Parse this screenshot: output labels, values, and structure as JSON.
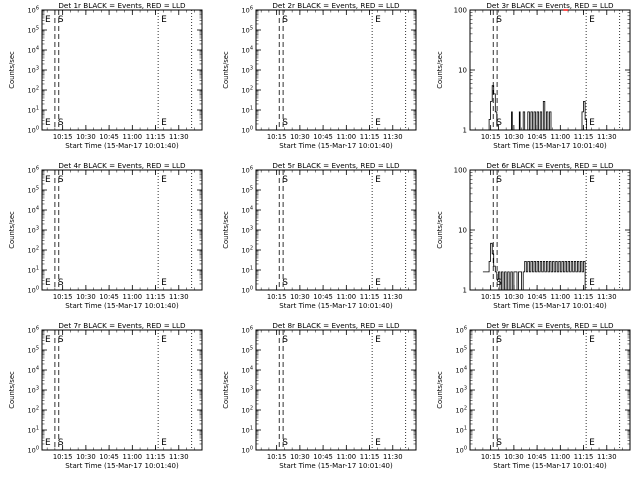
{
  "figure": {
    "background": "#ffffff",
    "ink_color": "#000000",
    "lld_color": "#ff0000"
  },
  "chart_data": [
    {
      "type": "line",
      "title": "Det 1r BLACK = Events, RED = LLD",
      "xlabel": "Start Time (15-Mar-17 10:01:40)",
      "ylabel": "Counts/sec",
      "y_scale": "log",
      "ylim": [
        1,
        1000000
      ],
      "y_ticks": [
        1,
        10,
        100,
        1000,
        10000,
        100000,
        1000000
      ],
      "y_tick_labels": [
        "10^0",
        "10^1",
        "10^2",
        "10^3",
        "10^4",
        "10^5",
        "10^6"
      ],
      "xlim": [
        "10:01:40",
        "11:45:00"
      ],
      "x_ticks": [
        "10:15",
        "10:30",
        "10:45",
        "11:00",
        "11:15",
        "11:30"
      ],
      "markers": [
        {
          "label": "E",
          "time": "10:01:40",
          "style": "dotted"
        },
        {
          "label": "S",
          "time": "10:10:00",
          "style": "dashed"
        },
        {
          "label": "E",
          "time": "11:16:40",
          "style": "dotted"
        },
        {
          "label": "",
          "time": "11:38:20",
          "style": "dotted"
        }
      ],
      "extra_dashed": [
        "10:12:30"
      ],
      "series": []
    },
    {
      "type": "line",
      "title": "Det 2r BLACK = Events, RED = LLD",
      "xlabel": "Start Time (15-Mar-17 10:01:40)",
      "ylabel": "Counts/sec",
      "y_scale": "log",
      "ylim": [
        1,
        1000000
      ],
      "y_ticks": [
        1,
        10,
        100,
        1000,
        10000,
        100000,
        1000000
      ],
      "y_tick_labels": [
        "10^0",
        "10^1",
        "10^2",
        "10^3",
        "10^4",
        "10^5",
        "10^6"
      ],
      "xlim": [
        "10:01:40",
        "11:45:00"
      ],
      "x_ticks": [
        "10:15",
        "10:30",
        "10:45",
        "11:00",
        "11:15",
        "11:30"
      ],
      "markers": [
        {
          "label": "S",
          "time": "10:16:40",
          "style": "dashed"
        },
        {
          "label": "E",
          "time": "11:16:40",
          "style": "dotted"
        },
        {
          "label": "",
          "time": "11:38:20",
          "style": "dotted"
        }
      ],
      "extra_dashed": [
        "10:19:10"
      ],
      "series": []
    },
    {
      "type": "line",
      "title": "Det 3r BLACK = Events, RED = LLD",
      "xlabel": "Start Time (15-Mar-17 10:01:40)",
      "ylabel": "Counts/sec",
      "y_scale": "log",
      "ylim": [
        1,
        100
      ],
      "y_ticks": [
        1,
        10,
        100
      ],
      "y_tick_labels": [
        "1",
        "10",
        "100"
      ],
      "xlim": [
        "10:01:40",
        "11:45:00"
      ],
      "x_ticks": [
        "10:15",
        "10:30",
        "10:45",
        "11:00",
        "11:15",
        "11:30"
      ],
      "markers": [
        {
          "label": "S",
          "time": "10:16:40",
          "style": "dashed"
        },
        {
          "label": "E",
          "time": "11:16:40",
          "style": "dotted"
        },
        {
          "label": "",
          "time": "11:38:20",
          "style": "dotted"
        }
      ],
      "extra_dashed": [
        "10:19:10"
      ],
      "series": [
        {
          "name": "Events",
          "color": "#000000",
          "step": true,
          "points": [
            [
              "10:13:20",
              1
            ],
            [
              "10:14:00",
              1.5
            ],
            [
              "10:15:00",
              3
            ],
            [
              "10:16:00",
              5.5
            ],
            [
              "10:17:00",
              4
            ],
            [
              "10:18:00",
              2
            ],
            [
              "10:19:00",
              1.2
            ],
            [
              "10:20:00",
              1
            ],
            [
              "10:28:00",
              1
            ],
            [
              "10:28:30",
              2
            ],
            [
              "10:29:00",
              1
            ],
            [
              "10:33:00",
              1
            ],
            [
              "10:33:30",
              2
            ],
            [
              "10:34:00",
              1
            ],
            [
              "10:36:00",
              2
            ],
            [
              "10:37:00",
              1
            ],
            [
              "10:39:00",
              2
            ],
            [
              "10:40:00",
              1
            ],
            [
              "10:41:00",
              2
            ],
            [
              "10:42:00",
              1
            ],
            [
              "10:43:00",
              2
            ],
            [
              "10:44:00",
              1
            ],
            [
              "10:45:00",
              2
            ],
            [
              "10:46:00",
              1
            ],
            [
              "10:47:00",
              2
            ],
            [
              "10:48:00",
              1
            ],
            [
              "10:49:00",
              3
            ],
            [
              "10:50:00",
              1
            ],
            [
              "10:51:00",
              2
            ],
            [
              "10:52:00",
              1
            ],
            [
              "10:53:00",
              2
            ],
            [
              "10:54:00",
              1
            ],
            [
              "10:55:00",
              1
            ],
            [
              "11:13:00",
              1
            ],
            [
              "11:14:00",
              2
            ],
            [
              "11:15:00",
              3
            ],
            [
              "11:16:00",
              1.5
            ],
            [
              "11:17:00",
              1
            ]
          ]
        },
        {
          "name": "LLD",
          "color": "#ff0000",
          "step": false,
          "points": [
            [
              "11:02:00",
              100
            ],
            [
              "11:05:00",
              100
            ]
          ]
        }
      ]
    },
    {
      "type": "line",
      "title": "Det 4r BLACK = Events, RED = LLD",
      "xlabel": "Start Time (15-Mar-17 10:01:40)",
      "ylabel": "Counts/sec",
      "y_scale": "log",
      "ylim": [
        1,
        1000000
      ],
      "y_ticks": [
        1,
        10,
        100,
        1000,
        10000,
        100000,
        1000000
      ],
      "y_tick_labels": [
        "10^0",
        "10^1",
        "10^2",
        "10^3",
        "10^4",
        "10^5",
        "10^6"
      ],
      "xlim": [
        "10:01:40",
        "11:45:00"
      ],
      "x_ticks": [
        "10:15",
        "10:30",
        "10:45",
        "11:00",
        "11:15",
        "11:30"
      ],
      "markers": [
        {
          "label": "E",
          "time": "10:01:40",
          "style": "dotted"
        },
        {
          "label": "S",
          "time": "10:10:00",
          "style": "dashed"
        },
        {
          "label": "E",
          "time": "11:16:40",
          "style": "dotted"
        },
        {
          "label": "",
          "time": "11:38:20",
          "style": "dotted"
        }
      ],
      "extra_dashed": [
        "10:12:30"
      ],
      "series": []
    },
    {
      "type": "line",
      "title": "Det 5r BLACK = Events, RED = LLD",
      "xlabel": "Start Time (15-Mar-17 10:01:40)",
      "ylabel": "Counts/sec",
      "y_scale": "log",
      "ylim": [
        1,
        1000000
      ],
      "y_ticks": [
        1,
        10,
        100,
        1000,
        10000,
        100000,
        1000000
      ],
      "y_tick_labels": [
        "10^0",
        "10^1",
        "10^2",
        "10^3",
        "10^4",
        "10^5",
        "10^6"
      ],
      "xlim": [
        "10:01:40",
        "11:45:00"
      ],
      "x_ticks": [
        "10:15",
        "10:30",
        "10:45",
        "11:00",
        "11:15",
        "11:30"
      ],
      "markers": [
        {
          "label": "S",
          "time": "10:16:40",
          "style": "dashed"
        },
        {
          "label": "E",
          "time": "11:16:40",
          "style": "dotted"
        },
        {
          "label": "",
          "time": "11:38:20",
          "style": "dotted"
        }
      ],
      "extra_dashed": [
        "10:19:10"
      ],
      "series": []
    },
    {
      "type": "line",
      "title": "Det 6r BLACK = Events, RED = LLD",
      "xlabel": "Start Time (15-Mar-17 10:01:40)",
      "ylabel": "Counts/sec",
      "y_scale": "log",
      "ylim": [
        1,
        100
      ],
      "y_ticks": [
        1,
        10,
        100
      ],
      "y_tick_labels": [
        "1",
        "10",
        "100"
      ],
      "xlim": [
        "10:01:40",
        "11:45:00"
      ],
      "x_ticks": [
        "10:15",
        "10:30",
        "10:45",
        "11:00",
        "11:15",
        "11:30"
      ],
      "markers": [
        {
          "label": "S",
          "time": "10:16:40",
          "style": "dashed"
        },
        {
          "label": "E",
          "time": "11:16:40",
          "style": "dotted"
        },
        {
          "label": "",
          "time": "11:38:20",
          "style": "dotted"
        }
      ],
      "extra_dashed": [
        "10:19:10"
      ],
      "series": [
        {
          "name": "Events",
          "color": "#000000",
          "step": true,
          "points": [
            [
              "10:10:00",
              2
            ],
            [
              "10:13:00",
              2
            ],
            [
              "10:14:00",
              3
            ],
            [
              "10:15:00",
              6
            ],
            [
              "10:16:00",
              4
            ],
            [
              "10:17:00",
              2.5
            ],
            [
              "10:18:00",
              2
            ],
            [
              "10:19:00",
              1.5
            ],
            [
              "10:20:00",
              2
            ],
            [
              "10:21:00",
              1
            ],
            [
              "10:22:00",
              2
            ],
            [
              "10:23:00",
              1
            ],
            [
              "10:24:00",
              2
            ],
            [
              "10:25:00",
              1
            ],
            [
              "10:26:00",
              2
            ],
            [
              "10:27:00",
              1
            ],
            [
              "10:28:00",
              2
            ],
            [
              "10:29:00",
              1
            ],
            [
              "10:30:00",
              2
            ],
            [
              "10:31:00",
              2
            ],
            [
              "10:32:00",
              1
            ],
            [
              "10:33:00",
              2
            ],
            [
              "10:34:00",
              2
            ],
            [
              "10:35:00",
              1
            ],
            [
              "10:36:00",
              2
            ],
            [
              "10:37:00",
              3
            ],
            [
              "10:38:00",
              2
            ],
            [
              "10:39:00",
              3
            ],
            [
              "10:40:00",
              2
            ],
            [
              "10:41:00",
              3
            ],
            [
              "10:42:00",
              2
            ],
            [
              "10:43:00",
              3
            ],
            [
              "10:44:00",
              2
            ],
            [
              "10:45:00",
              3
            ],
            [
              "10:46:00",
              2
            ],
            [
              "10:47:00",
              3
            ],
            [
              "10:48:00",
              2
            ],
            [
              "10:49:00",
              3
            ],
            [
              "10:50:00",
              2
            ],
            [
              "10:51:00",
              3
            ],
            [
              "10:52:00",
              2
            ],
            [
              "10:53:00",
              3
            ],
            [
              "10:54:00",
              2
            ],
            [
              "10:55:00",
              3
            ],
            [
              "10:56:00",
              2
            ],
            [
              "10:57:00",
              3
            ],
            [
              "10:58:00",
              2
            ],
            [
              "10:59:00",
              3
            ],
            [
              "11:00:00",
              2
            ],
            [
              "11:01:00",
              3
            ],
            [
              "11:02:00",
              2
            ],
            [
              "11:03:00",
              3
            ],
            [
              "11:04:00",
              2
            ],
            [
              "11:05:00",
              3
            ],
            [
              "11:06:00",
              2
            ],
            [
              "11:07:00",
              3
            ],
            [
              "11:08:00",
              2
            ],
            [
              "11:09:00",
              3
            ],
            [
              "11:10:00",
              2
            ],
            [
              "11:11:00",
              3
            ],
            [
              "11:12:00",
              2
            ],
            [
              "11:13:00",
              3
            ],
            [
              "11:14:00",
              2
            ],
            [
              "11:15:00",
              3
            ],
            [
              "11:16:00",
              1
            ]
          ]
        }
      ]
    },
    {
      "type": "line",
      "title": "Det 7r BLACK = Events, RED = LLD",
      "xlabel": "Start Time (15-Mar-17 10:01:40)",
      "ylabel": "Counts/sec",
      "y_scale": "log",
      "ylim": [
        1,
        1000000
      ],
      "y_ticks": [
        1,
        10,
        100,
        1000,
        10000,
        100000,
        1000000
      ],
      "y_tick_labels": [
        "10^0",
        "10^1",
        "10^2",
        "10^3",
        "10^4",
        "10^5",
        "10^6"
      ],
      "xlim": [
        "10:01:40",
        "11:45:00"
      ],
      "x_ticks": [
        "10:15",
        "10:30",
        "10:45",
        "11:00",
        "11:15",
        "11:30"
      ],
      "markers": [
        {
          "label": "E",
          "time": "10:01:40",
          "style": "dotted"
        },
        {
          "label": "S",
          "time": "10:10:00",
          "style": "dashed"
        },
        {
          "label": "E",
          "time": "11:16:40",
          "style": "dotted"
        },
        {
          "label": "",
          "time": "11:38:20",
          "style": "dotted"
        }
      ],
      "extra_dashed": [
        "10:12:30"
      ],
      "series": []
    },
    {
      "type": "line",
      "title": "Det 8r BLACK = Events, RED = LLD",
      "xlabel": "Start Time (15-Mar-17 10:01:40)",
      "ylabel": "Counts/sec",
      "y_scale": "log",
      "ylim": [
        1,
        1000000
      ],
      "y_ticks": [
        1,
        10,
        100,
        1000,
        10000,
        100000,
        1000000
      ],
      "y_tick_labels": [
        "10^0",
        "10^1",
        "10^2",
        "10^3",
        "10^4",
        "10^5",
        "10^6"
      ],
      "xlim": [
        "10:01:40",
        "11:45:00"
      ],
      "x_ticks": [
        "10:15",
        "10:30",
        "10:45",
        "11:00",
        "11:15",
        "11:30"
      ],
      "markers": [
        {
          "label": "S",
          "time": "10:16:40",
          "style": "dashed"
        },
        {
          "label": "E",
          "time": "11:16:40",
          "style": "dotted"
        },
        {
          "label": "",
          "time": "11:38:20",
          "style": "dotted"
        }
      ],
      "extra_dashed": [
        "10:19:10"
      ],
      "series": []
    },
    {
      "type": "line",
      "title": "Det 9r BLACK = Events, RED = LLD",
      "xlabel": "Start Time (15-Mar-17 10:01:40)",
      "ylabel": "Counts/sec",
      "y_scale": "log",
      "ylim": [
        1,
        1000000
      ],
      "y_ticks": [
        1,
        10,
        100,
        1000,
        10000,
        100000,
        1000000
      ],
      "y_tick_labels": [
        "10^0",
        "10^1",
        "10^2",
        "10^3",
        "10^4",
        "10^5",
        "10^6"
      ],
      "xlim": [
        "10:01:40",
        "11:45:00"
      ],
      "x_ticks": [
        "10:15",
        "10:30",
        "10:45",
        "11:00",
        "11:15",
        "11:30"
      ],
      "markers": [
        {
          "label": "S",
          "time": "10:16:40",
          "style": "dashed"
        },
        {
          "label": "E",
          "time": "11:16:40",
          "style": "dotted"
        },
        {
          "label": "",
          "time": "11:38:20",
          "style": "dotted"
        }
      ],
      "extra_dashed": [
        "10:19:10"
      ],
      "series": []
    }
  ]
}
